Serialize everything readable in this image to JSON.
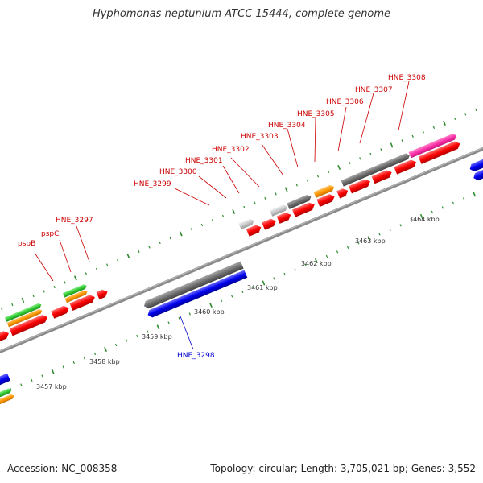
{
  "title": "Hyphomonas neptunium ATCC 15444, complete genome",
  "footer": {
    "accession": "Accession: NC_008358",
    "summary": "Topology: circular; Length: 3,705,021 bp; Genes: 3,552"
  },
  "colors": {
    "backbone": "#8a8a8a",
    "tick": "#2e8b2e",
    "red_gene": "#ff0000",
    "blue_gene": "#0000ee",
    "gray_gene": "#707070",
    "light_gray_gene": "#c8c8c8",
    "orange_gene": "#ff9900",
    "green_gene": "#33cc33",
    "pink_gene": "#ff33aa",
    "label_red": "#cc0000",
    "label_blue": "#0000cc"
  },
  "scale_labels": [
    "3457 kbp",
    "3458 kbp",
    "3459 kbp",
    "3460 kbp",
    "3461 kbp",
    "3462 kbp",
    "3463 kbp",
    "3464 kbp"
  ],
  "upper_labels": [
    {
      "text": "pspB"
    },
    {
      "text": "pspC"
    },
    {
      "text": "HNE_3297"
    },
    {
      "text": "HNE_3299"
    },
    {
      "text": "HNE_3300"
    },
    {
      "text": "HNE_3301"
    },
    {
      "text": "HNE_3302"
    },
    {
      "text": "HNE_3303"
    },
    {
      "text": "HNE_3304"
    },
    {
      "text": "HNE_3305"
    },
    {
      "text": "HNE_3306"
    },
    {
      "text": "HNE_3307"
    },
    {
      "text": "HNE_3308"
    }
  ],
  "lower_labels": [
    {
      "text": "HNE_3298"
    }
  ]
}
